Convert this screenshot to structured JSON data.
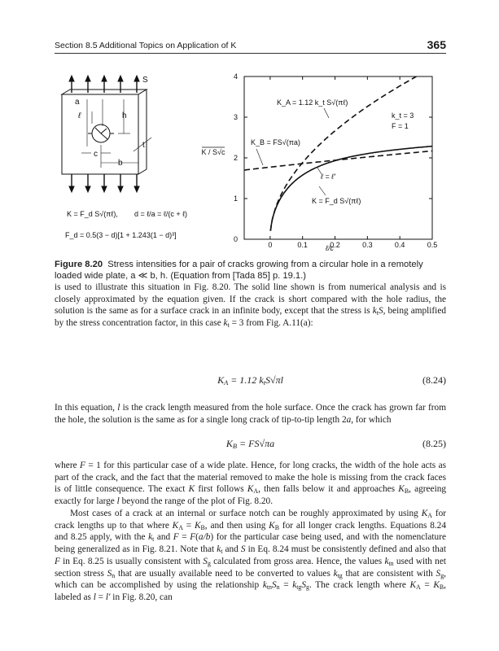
{
  "header": {
    "section": "Section 8.5   Additional Topics on Application of K",
    "page_number": "365"
  },
  "figure": {
    "diagram_labels": {
      "S": "S",
      "a": "a",
      "l": "ℓ",
      "h": "h",
      "t": "t",
      "c": "c",
      "b": "b"
    },
    "formula_k": "K = F_d S√(πℓ),",
    "formula_d": "d = ℓ/a = ℓ/(c + ℓ)",
    "formula_fd": "F_d = 0.5(3 − d)[1 + 1.243(1 − d)³]",
    "annotations": {
      "ka": "K_A = 1.12 k_t S√(πℓ)",
      "kb": "K_B = FS√(πa)",
      "k": "K = F_d S√(πℓ)",
      "intersection": "ℓ = ℓ'",
      "kt": "k_t = 3",
      "F": "F = 1"
    }
  },
  "chart_data": {
    "type": "line",
    "xlabel": "ℓ/c",
    "ylabel": "K / S√c",
    "xlim": [
      -0.08,
      0.5
    ],
    "ylim": [
      0,
      4
    ],
    "xticks": [
      "0",
      "0.1",
      "0.2",
      "0.3",
      "0.4",
      "0.5"
    ],
    "yticks": [
      "0",
      "1",
      "2",
      "3",
      "4"
    ],
    "grid": false,
    "series": [
      {
        "name": "K_A = 1.12 k_t S√(πℓ)",
        "style": "dashed",
        "x": [
          0,
          0.05,
          0.1,
          0.2,
          0.3,
          0.4,
          0.45
        ],
        "y": [
          0,
          1.33,
          1.88,
          2.66,
          3.26,
          3.77,
          3.99
        ]
      },
      {
        "name": "K_B = FS√(πa)",
        "style": "dashed",
        "x": [
          -0.08,
          0,
          0.1,
          0.2,
          0.3,
          0.4,
          0.5
        ],
        "y": [
          1.7,
          1.77,
          1.86,
          1.94,
          2.02,
          2.1,
          2.17
        ]
      },
      {
        "name": "K = F_d S√(πℓ)",
        "style": "solid",
        "x": [
          0,
          0.01,
          0.05,
          0.1,
          0.2,
          0.3,
          0.4,
          0.5
        ],
        "y": [
          0,
          0.59,
          1.26,
          1.62,
          1.92,
          2.08,
          2.19,
          2.29
        ]
      }
    ]
  },
  "caption": {
    "label": "Figure 8.20",
    "text": "Stress intensities for a pair of cracks growing from a circular hole in a remotely loaded wide plate, a ≪ b, h. (Equation from [Tada 85] p. 19.1.)"
  },
  "body": {
    "p1": [
      [
        "is used to illustrate this situation in Fig. 8.20. The solid line shown is from numerical analysis and is closely approximated by the equation given. If the crack is short compared with the hole radius, the solution is the same as for a surface crack in an infinite body, except that the stress is "
      ],
      [
        "k",
        "i"
      ],
      [
        "t",
        "sub"
      ],
      [
        "S",
        "i"
      ],
      [
        ", being amplified by the stress concentration factor, in this case "
      ],
      [
        "k",
        "i"
      ],
      [
        "t",
        "sub"
      ],
      [
        " = 3 from Fig. A.11(a):"
      ]
    ],
    "eq1": [
      [
        "K",
        "i"
      ],
      [
        "A",
        "sub"
      ],
      [
        " = 1.12 "
      ],
      [
        "k",
        "i"
      ],
      [
        "t",
        "sub"
      ],
      [
        "S",
        "i"
      ],
      [
        "√"
      ],
      [
        "πl",
        "i"
      ]
    ],
    "eq1_num": "(8.24)",
    "p2": [
      [
        "In this equation, "
      ],
      [
        "l",
        "i"
      ],
      [
        " is the crack length measured from the hole surface. Once the crack has grown far from the hole, the solution is the same as for a single long crack of tip-to-tip length 2"
      ],
      [
        "a",
        "i"
      ],
      [
        ", for which"
      ]
    ],
    "eq2": [
      [
        "K",
        "i"
      ],
      [
        "B",
        "sub"
      ],
      [
        " = "
      ],
      [
        "FS",
        "i"
      ],
      [
        "√"
      ],
      [
        "πa",
        "i"
      ]
    ],
    "eq2_num": "(8.25)",
    "p3": [
      [
        "where "
      ],
      [
        "F",
        "i"
      ],
      [
        " = 1 for this particular case of a wide plate. Hence, for long cracks, the width of the hole acts as part of the crack, and the fact that the material removed to make the hole is missing from the crack faces is of little consequence. The exact "
      ],
      [
        "K",
        "i"
      ],
      [
        " first follows "
      ],
      [
        "K",
        "i"
      ],
      [
        "A",
        "sub"
      ],
      [
        ", then falls below it and approaches "
      ],
      [
        "K",
        "i"
      ],
      [
        "B",
        "sub"
      ],
      [
        ", agreeing exactly for large "
      ],
      [
        "l",
        "i"
      ],
      [
        " beyond the range of the plot of Fig. 8.20."
      ]
    ],
    "p4": [
      [
        "Most cases of a crack at an internal or surface notch can be roughly approximated by using "
      ],
      [
        "K",
        "i"
      ],
      [
        "A",
        "sub"
      ],
      [
        " for crack lengths up to that where "
      ],
      [
        "K",
        "i"
      ],
      [
        "A",
        "sub"
      ],
      [
        " = "
      ],
      [
        "K",
        "i"
      ],
      [
        "B",
        "sub"
      ],
      [
        ", and then using "
      ],
      [
        "K",
        "i"
      ],
      [
        "B",
        "sub"
      ],
      [
        " for all longer crack lengths. Equations 8.24 and 8.25 apply, with the "
      ],
      [
        "k",
        "i"
      ],
      [
        "t",
        "sub"
      ],
      [
        " and "
      ],
      [
        "F",
        "i"
      ],
      [
        " = "
      ],
      [
        "F",
        "i"
      ],
      [
        "("
      ],
      [
        "a/b",
        "i"
      ],
      [
        ") for the particular case being used, and with the nomenclature being generalized as in Fig. 8.21. Note that "
      ],
      [
        "k",
        "i"
      ],
      [
        "t",
        "sub"
      ],
      [
        " and "
      ],
      [
        "S",
        "i"
      ],
      [
        " in Eq. 8.24 must be consistently defined and also that "
      ],
      [
        "F",
        "i"
      ],
      [
        " in Eq. 8.25 is usually consistent with "
      ],
      [
        "S",
        "i"
      ],
      [
        "g",
        "sub"
      ],
      [
        " calculated from gross area. Hence, the values "
      ],
      [
        "k",
        "i"
      ],
      [
        "tn",
        "sub"
      ],
      [
        " used with net section stress "
      ],
      [
        "S",
        "i"
      ],
      [
        "n",
        "sub"
      ],
      [
        " that are usually available need to be converted to values "
      ],
      [
        "k",
        "i"
      ],
      [
        "tg",
        "sub"
      ],
      [
        " that are consistent with "
      ],
      [
        "S",
        "i"
      ],
      [
        "g",
        "sub"
      ],
      [
        ", which can be accomplished by using the relationship "
      ],
      [
        "k",
        "i"
      ],
      [
        "tn",
        "sub"
      ],
      [
        "S",
        "i"
      ],
      [
        "n",
        "sub"
      ],
      [
        " = "
      ],
      [
        "k",
        "i"
      ],
      [
        "tg",
        "sub"
      ],
      [
        "S",
        "i"
      ],
      [
        "g",
        "sub"
      ],
      [
        ". The crack length where "
      ],
      [
        "K",
        "i"
      ],
      [
        "A",
        "sub"
      ],
      [
        " = "
      ],
      [
        "K",
        "i"
      ],
      [
        "B",
        "sub"
      ],
      [
        ", labeled as "
      ],
      [
        "l",
        "i"
      ],
      [
        " = "
      ],
      [
        "l′",
        "i"
      ],
      [
        " in Fig. 8.20, can"
      ]
    ]
  }
}
